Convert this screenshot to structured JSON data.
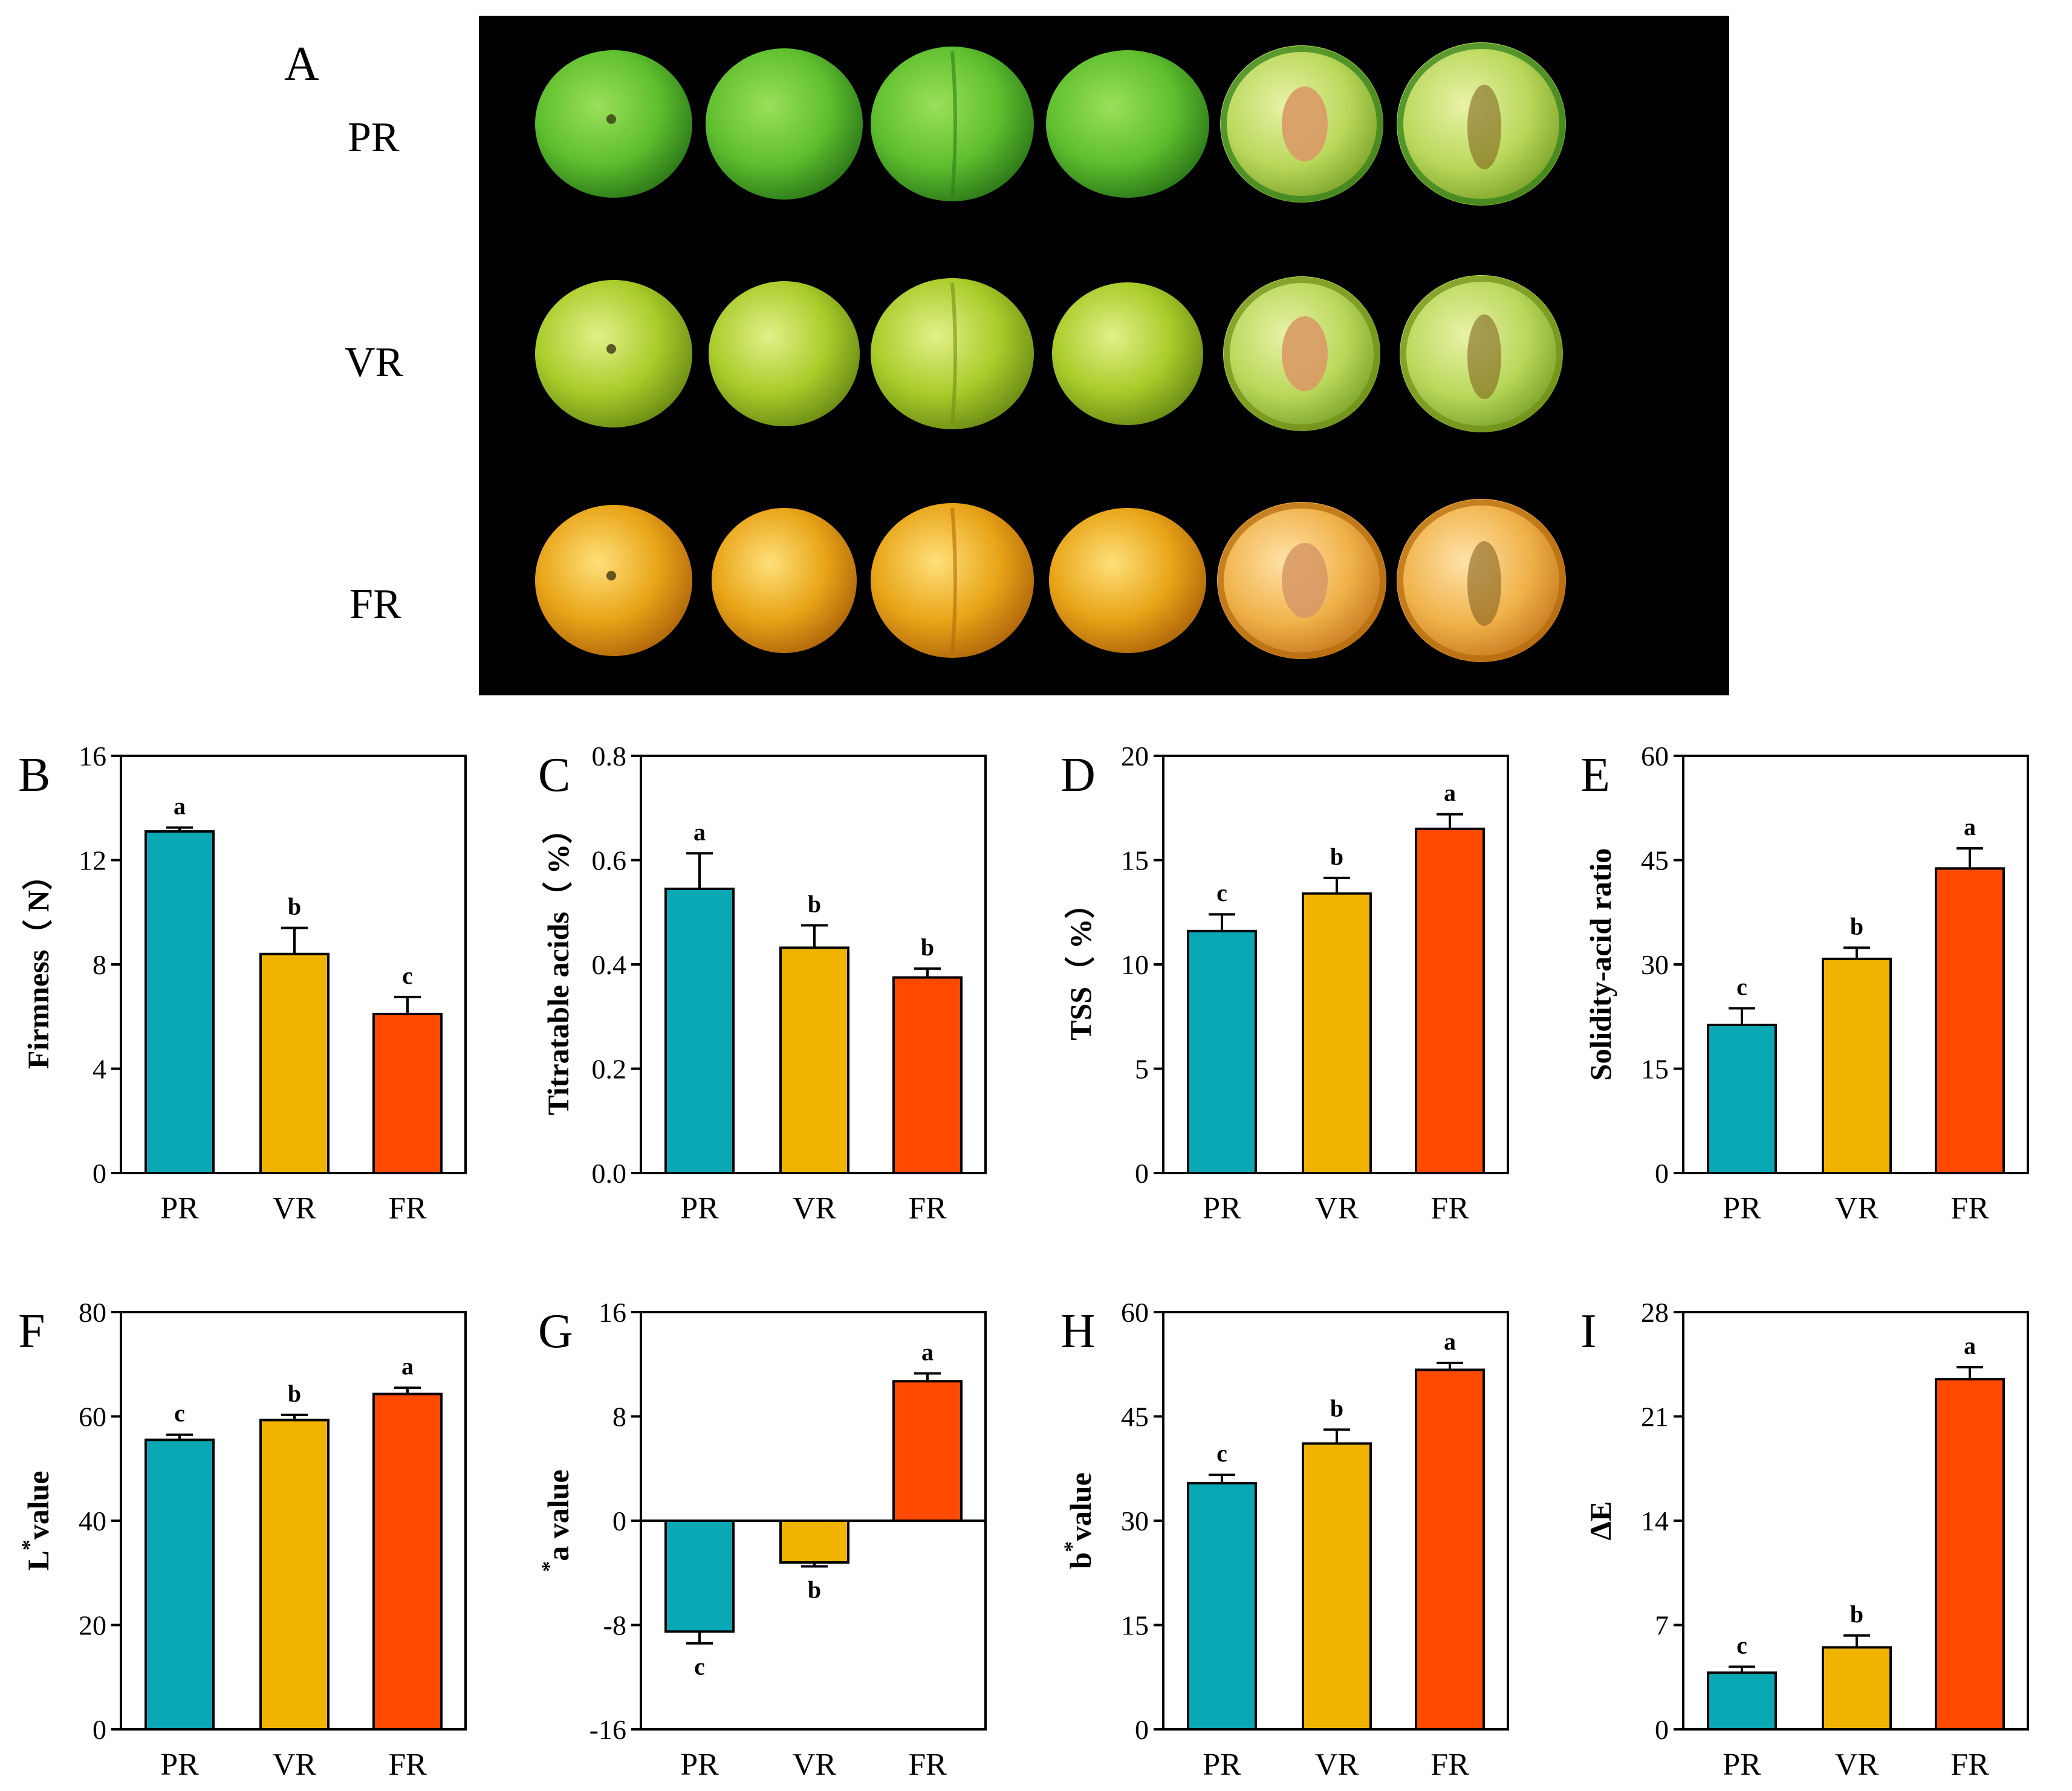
{
  "figure": {
    "panel_a": {
      "letter": "A",
      "rows": [
        "PR",
        "VR",
        "FR"
      ]
    }
  },
  "colors": {
    "PR": "#0aa7b4",
    "VR": "#f0b400",
    "FR": "#ff4a00",
    "photo_bg": "#000000",
    "fruit_green": "#5fbf2e",
    "fruit_yellowgreen": "#a9cc2a",
    "fruit_orange": "#e8a417",
    "flesh_green": "#b9d85a",
    "flesh_orange": "#f0b24a",
    "pit": "#d99a66"
  },
  "chart_data": [
    {
      "panel": "B",
      "type": "bar",
      "categories": [
        "PR",
        "VR",
        "FR"
      ],
      "values": [
        13.1,
        8.4,
        6.1
      ],
      "errors": [
        0.15,
        1.0,
        0.65
      ],
      "letters": [
        "a",
        "b",
        "c"
      ],
      "ylabel": "Firmness（ N）",
      "ylim": [
        0,
        16
      ],
      "yticks": [
        0,
        4,
        8,
        12,
        16
      ],
      "yticklabels": [
        "0",
        "4",
        "8",
        "12",
        "16"
      ]
    },
    {
      "panel": "C",
      "type": "bar",
      "categories": [
        "PR",
        "VR",
        "FR"
      ],
      "values": [
        0.545,
        0.432,
        0.375
      ],
      "errors": [
        0.068,
        0.043,
        0.017
      ],
      "letters": [
        "a",
        "b",
        "b"
      ],
      "ylabel": "Titratable acids（ %）",
      "ylim": [
        0,
        0.8
      ],
      "yticks": [
        0,
        0.2,
        0.4,
        0.6,
        0.8
      ],
      "yticklabels": [
        "0.0",
        "0.2",
        "0.4",
        "0.6",
        "0.8"
      ]
    },
    {
      "panel": "D",
      "type": "bar",
      "categories": [
        "PR",
        "VR",
        "FR"
      ],
      "values": [
        11.6,
        13.4,
        16.5
      ],
      "errors": [
        0.8,
        0.75,
        0.7
      ],
      "letters": [
        "c",
        "b",
        "a"
      ],
      "ylabel": "TSS（ %）",
      "ylim": [
        0,
        20
      ],
      "yticks": [
        0,
        5,
        10,
        15,
        20
      ],
      "yticklabels": [
        "0",
        "5",
        "10",
        "15",
        "20"
      ]
    },
    {
      "panel": "E",
      "type": "bar",
      "categories": [
        "PR",
        "VR",
        "FR"
      ],
      "values": [
        21.3,
        30.8,
        43.8
      ],
      "errors": [
        2.4,
        1.6,
        2.9
      ],
      "letters": [
        "c",
        "b",
        "a"
      ],
      "ylabel": "Solidity-acid ratio",
      "ylim": [
        0,
        60
      ],
      "yticks": [
        0,
        15,
        30,
        45,
        60
      ],
      "yticklabels": [
        "0",
        "15",
        "30",
        "45",
        "60"
      ]
    },
    {
      "panel": "F",
      "type": "bar",
      "categories": [
        "PR",
        "VR",
        "FR"
      ],
      "values": [
        55.5,
        59.3,
        64.3
      ],
      "errors": [
        1.0,
        1.0,
        1.2
      ],
      "letters": [
        "c",
        "b",
        "a"
      ],
      "ylabel": "L",
      "ylabel_sup": "*",
      "ylabel_tail": "value",
      "ylim": [
        0,
        80
      ],
      "yticks": [
        0,
        20,
        40,
        60,
        80
      ],
      "yticklabels": [
        "0",
        "20",
        "40",
        "60",
        "80"
      ]
    },
    {
      "panel": "G",
      "type": "bar",
      "categories": [
        "PR",
        "VR",
        "FR"
      ],
      "values": [
        -8.5,
        -3.2,
        10.7
      ],
      "errors": [
        0.9,
        0.3,
        0.6
      ],
      "letters": [
        "c",
        "b",
        "a"
      ],
      "ylabel": "a value",
      "ylabel_sup": "*",
      "ylim": [
        -16,
        16
      ],
      "yticks": [
        -16,
        -8,
        0,
        8,
        16
      ],
      "yticklabels": [
        "-16",
        "-8",
        "0",
        "8",
        "16"
      ]
    },
    {
      "panel": "H",
      "type": "bar",
      "categories": [
        "PR",
        "VR",
        "FR"
      ],
      "values": [
        35.4,
        41.1,
        51.7
      ],
      "errors": [
        1.2,
        2.0,
        1.0
      ],
      "letters": [
        "c",
        "b",
        "a"
      ],
      "ylabel": "b",
      "ylabel_sup": "*",
      "ylabel_tail": "value",
      "ylim": [
        0,
        60
      ],
      "yticks": [
        0,
        15,
        30,
        45,
        60
      ],
      "yticklabels": [
        "0",
        "15",
        "30",
        "45",
        "60"
      ]
    },
    {
      "panel": "I",
      "type": "bar",
      "categories": [
        "PR",
        "VR",
        "FR"
      ],
      "values": [
        3.8,
        5.5,
        23.5
      ],
      "errors": [
        0.4,
        0.8,
        0.8
      ],
      "letters": [
        "c",
        "b",
        "a"
      ],
      "ylabel": "ΔE",
      "ylim": [
        0,
        28
      ],
      "yticks": [
        0,
        7,
        14,
        21,
        28
      ],
      "yticklabels": [
        "0",
        "7",
        "14",
        "21",
        "28"
      ]
    }
  ]
}
